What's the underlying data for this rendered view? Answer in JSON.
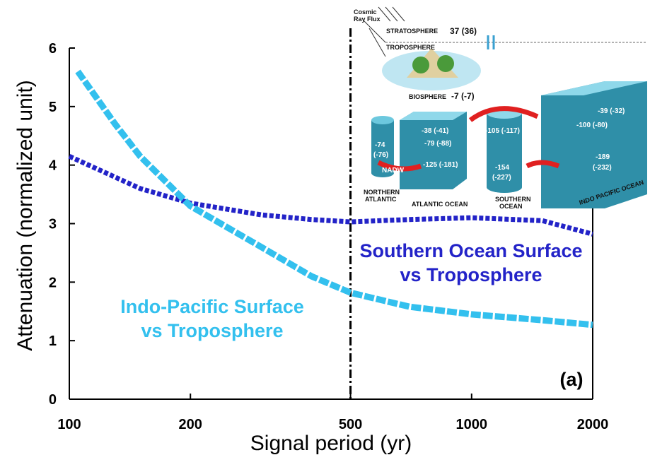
{
  "chart_data": {
    "type": "line",
    "xlabel": "Signal period (yr)",
    "ylabel": "Attenuation (normalized unit)",
    "xscale": "log",
    "xlim": [
      100,
      2000
    ],
    "xticks": [
      100,
      200,
      500,
      1000,
      2000
    ],
    "ylim": [
      0,
      6
    ],
    "yticks": [
      0,
      1,
      2,
      3,
      4,
      5,
      6
    ],
    "vline": 500,
    "series": [
      {
        "name": "Southern Ocean Surface vs Troposphere",
        "color": "#2323c8",
        "x": [
          100,
          150,
          200,
          300,
          400,
          500,
          700,
          1000,
          1500,
          2000
        ],
        "values": [
          4.15,
          3.6,
          3.35,
          3.15,
          3.07,
          3.03,
          3.07,
          3.1,
          3.05,
          2.82
        ]
      },
      {
        "name": "Indo-Pacific Surface vs Troposphere",
        "color": "#33c0ee",
        "x": [
          105,
          130,
          150,
          200,
          300,
          400,
          500,
          700,
          1000,
          1500,
          2000
        ],
        "values": [
          5.6,
          4.7,
          4.15,
          3.3,
          2.6,
          2.1,
          1.82,
          1.58,
          1.45,
          1.35,
          1.27
        ]
      }
    ],
    "annotations": [
      {
        "lines": [
          "Indo-Pacific Surface",
          "vs Troposphere"
        ],
        "color": "#33c0ee"
      },
      {
        "lines": [
          "Southern Ocean Surface",
          "vs Troposphere"
        ],
        "color": "#2323c8"
      },
      {
        "lines": [
          "(a)"
        ],
        "color": "#000000"
      }
    ]
  },
  "inset": {
    "labels": [
      "Cosmic",
      "Ray Flux",
      "STRATOSPHERE",
      "37 (36)",
      "TROPOSPHERE",
      "BIOSPHERE",
      "-7 (-7)",
      "-38 (-41)",
      "-79 (-88)",
      "-125 (-181)",
      "-74",
      "(-76)",
      "NADW",
      "-105 (-117)",
      "-154",
      "(-227)",
      "-39 (-32)",
      "-100 (-80)",
      "-189",
      "(-232)",
      "NORTHERN",
      "ATLANTIC",
      "ATLANTIC OCEAN",
      "SOUTHERN",
      "OCEAN",
      "INDO PACIFIC OCEAN"
    ]
  }
}
